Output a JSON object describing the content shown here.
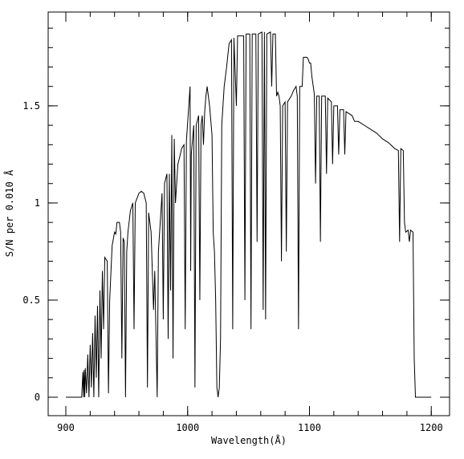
{
  "chart_data": {
    "type": "line",
    "xlabel": "Wavelength(Å)",
    "ylabel": "S/N per 0.010 Å",
    "color": "#000000",
    "xlim": [
      885.5,
      1215
    ],
    "ylim": [
      -0.095,
      1.983
    ],
    "xticks": [
      900,
      1000,
      1100,
      1200
    ],
    "yticks": [
      0,
      0.5,
      1,
      1.5
    ],
    "xminorticks": [
      880,
      900,
      920,
      940,
      960,
      980,
      1000,
      1020,
      1040,
      1060,
      1080,
      1100,
      1120,
      1140,
      1160,
      1180,
      1200
    ],
    "yminorticks": [
      0,
      0.1,
      0.2,
      0.3,
      0.4,
      0.5,
      0.6,
      0.7,
      0.8,
      0.9,
      1,
      1.1,
      1.2,
      1.3,
      1.4,
      1.5,
      1.6,
      1.7,
      1.8,
      1.9
    ],
    "x": [
      900,
      913,
      914,
      914.5,
      915,
      915.5,
      916,
      917,
      918,
      919,
      920,
      921,
      922,
      923,
      924,
      925,
      926,
      927,
      928,
      929,
      930,
      931,
      932,
      934,
      935,
      936,
      938,
      940,
      941,
      942,
      944,
      945,
      946,
      947,
      948,
      949,
      950,
      951,
      953,
      955,
      956,
      957,
      960,
      962,
      964,
      966,
      967,
      968,
      970,
      972,
      973,
      975,
      976,
      978,
      979,
      980,
      981,
      983,
      984,
      985,
      986,
      987,
      988,
      989,
      990,
      991,
      992,
      994,
      995,
      997,
      998,
      999,
      1002,
      1002.5,
      1003,
      1005,
      1006,
      1007,
      1009,
      1010,
      1011,
      1012,
      1013,
      1014,
      1015,
      1016,
      1018,
      1020,
      1021,
      1022,
      1023,
      1024,
      1025,
      1026,
      1027,
      1028,
      1030,
      1032,
      1034,
      1036,
      1037,
      1038,
      1040,
      1041,
      1044,
      1046,
      1047,
      1048,
      1051,
      1052,
      1053,
      1056,
      1057,
      1058,
      1061,
      1062,
      1063,
      1064,
      1065,
      1068,
      1069,
      1070,
      1072,
      1073,
      1074,
      1075,
      1076,
      1077,
      1078,
      1080,
      1081,
      1082,
      1085,
      1087,
      1089,
      1090,
      1091,
      1092,
      1094,
      1095,
      1098,
      1099,
      1100,
      1101,
      1102,
      1104,
      1105,
      1106,
      1108,
      1109,
      1110,
      1113,
      1114,
      1115,
      1118,
      1119,
      1120,
      1123,
      1124,
      1125,
      1128,
      1129,
      1130,
      1135,
      1137,
      1140,
      1145,
      1150,
      1155,
      1160,
      1165,
      1170,
      1173,
      1174,
      1175,
      1177,
      1178,
      1179,
      1181,
      1182,
      1183,
      1185,
      1186,
      1187,
      1200
    ],
    "values": [
      0,
      0,
      0.13,
      0,
      0.14,
      0,
      0.15,
      0.02,
      0.22,
      0,
      0.27,
      0.05,
      0.33,
      0,
      0.42,
      0.1,
      0.47,
      0,
      0.55,
      0.2,
      0.65,
      0.35,
      0.72,
      0.7,
      0.02,
      0.5,
      0.78,
      0.85,
      0.84,
      0.9,
      0.9,
      0.85,
      0.2,
      0.82,
      0.8,
      0,
      0.75,
      0.85,
      0.96,
      1,
      0.35,
      1,
      1.05,
      1.06,
      1.05,
      1,
      0.05,
      0.95,
      0.85,
      0.45,
      0.65,
      0,
      0.75,
      0.95,
      1.05,
      0.4,
      1.1,
      1.15,
      0.3,
      1.15,
      0.55,
      1.35,
      0.2,
      1.33,
      1,
      1.1,
      1.2,
      1.25,
      1.28,
      1.3,
      0.35,
      1.32,
      1.6,
      0.65,
      1.25,
      1.4,
      0.05,
      1.4,
      1.45,
      0.5,
      1.4,
      1.45,
      1.3,
      1.47,
      1.55,
      1.6,
      1.5,
      1.35,
      0.85,
      0.75,
      0.5,
      0.05,
      0,
      0.05,
      0.3,
      1.4,
      1.6,
      1.7,
      1.82,
      1.84,
      0.35,
      1.85,
      1.5,
      1.86,
      1.86,
      1.86,
      0.5,
      1.87,
      1.87,
      0.35,
      1.87,
      1.87,
      0.8,
      1.87,
      1.88,
      0.45,
      1.88,
      0.4,
      1.87,
      1.88,
      1.6,
      1.87,
      1.87,
      1.55,
      1.57,
      1.55,
      1.5,
      0.7,
      1.5,
      1.52,
      0.75,
      1.52,
      1.55,
      1.58,
      1.6,
      1.55,
      0.35,
      1.6,
      1.6,
      1.75,
      1.75,
      1.74,
      1.72,
      1.72,
      1.65,
      1.56,
      1.1,
      1.55,
      1.55,
      0.8,
      1.55,
      1.55,
      1.15,
      1.54,
      1.52,
      1.2,
      1.5,
      1.5,
      1.25,
      1.48,
      1.48,
      1.25,
      1.47,
      1.45,
      1.42,
      1.42,
      1.4,
      1.38,
      1.36,
      1.33,
      1.31,
      1.28,
      1.27,
      0.8,
      1.28,
      1.27,
      0.9,
      0.85,
      0.86,
      0.8,
      0.86,
      0.85,
      0.2,
      0,
      0
    ]
  }
}
